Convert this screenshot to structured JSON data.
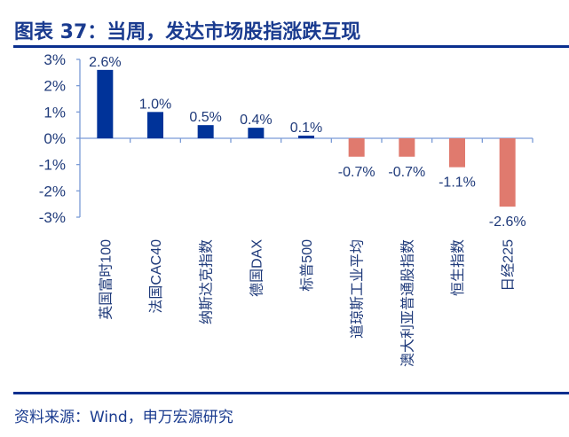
{
  "title": "图表 37：当周，发达市场股指涨跌互现",
  "source": "资料来源：Wind，申万宏源研究",
  "colors": {
    "positive": "#003399",
    "negative": "#e07a6e",
    "axis": "#7a9ad6",
    "text": "#1f3a7a"
  },
  "chart_data": {
    "type": "bar",
    "title": "当周，发达市场股指涨跌互现",
    "categories": [
      "英国富时100",
      "法国CAC40",
      "纳斯达克指数",
      "德国DAX",
      "标普500",
      "道琼斯工业平均",
      "澳大利亚普通股指数",
      "恒生指数",
      "日经225"
    ],
    "values": [
      2.6,
      1.0,
      0.5,
      0.4,
      0.1,
      -0.7,
      -0.7,
      -1.1,
      -2.6
    ],
    "data_labels": [
      "2.6%",
      "1.0%",
      "0.5%",
      "0.4%",
      "0.1%",
      "-0.7%",
      "-0.7%",
      "-1.1%",
      "-2.6%"
    ],
    "ylim": [
      -3,
      3
    ],
    "yticks": [
      "3%",
      "2%",
      "1%",
      "0%",
      "-1%",
      "-2%",
      "-3%"
    ],
    "xlabel": "",
    "ylabel": "",
    "grid": false,
    "legend": "none"
  }
}
